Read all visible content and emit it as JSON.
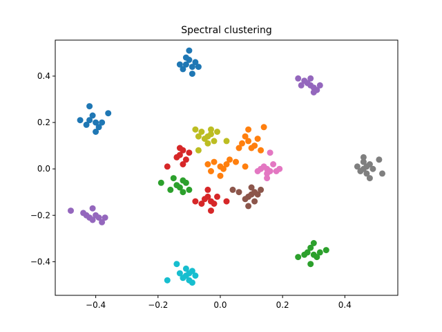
{
  "chart_data": {
    "type": "scatter",
    "title": "Spectral clustering",
    "xlabel": "",
    "ylabel": "",
    "xlim": [
      -0.53,
      0.57
    ],
    "ylim": [
      -0.545,
      0.555
    ],
    "xticks": [
      -0.4,
      -0.2,
      0.0,
      0.2,
      0.4
    ],
    "xtick_labels": [
      "−0.4",
      "−0.2",
      "0.0",
      "0.2",
      "0.4"
    ],
    "yticks": [
      -0.4,
      -0.2,
      0.0,
      0.2,
      0.4
    ],
    "ytick_labels": [
      "−0.4",
      "−0.2",
      "0.0",
      "0.2",
      "0.4"
    ],
    "grid": false,
    "legend": "none",
    "clusters": [
      {
        "color": "#1f77b4",
        "points": [
          [
            -0.11,
            0.45
          ],
          [
            -0.1,
            0.47
          ],
          [
            -0.09,
            0.44
          ],
          [
            -0.12,
            0.43
          ],
          [
            -0.08,
            0.46
          ],
          [
            -0.1,
            0.51
          ],
          [
            -0.09,
            0.41
          ],
          [
            -0.13,
            0.45
          ],
          [
            -0.07,
            0.44
          ],
          [
            -0.11,
            0.48
          ],
          [
            -0.42,
            0.21
          ],
          [
            -0.4,
            0.2
          ],
          [
            -0.41,
            0.23
          ],
          [
            -0.43,
            0.19
          ],
          [
            -0.39,
            0.18
          ],
          [
            -0.42,
            0.27
          ],
          [
            -0.36,
            0.24
          ],
          [
            -0.4,
            0.16
          ],
          [
            -0.45,
            0.21
          ],
          [
            -0.38,
            0.2
          ]
        ]
      },
      {
        "color": "#ff7f0e",
        "points": [
          [
            0.0,
            0.01
          ],
          [
            -0.02,
            0.03
          ],
          [
            0.01,
            0.0
          ],
          [
            -0.03,
            -0.01
          ],
          [
            0.02,
            0.02
          ],
          [
            0.0,
            -0.03
          ],
          [
            0.03,
            0.04
          ],
          [
            -0.04,
            0.02
          ],
          [
            0.05,
            0.03
          ],
          [
            0.09,
            0.12
          ],
          [
            0.11,
            0.1
          ],
          [
            0.08,
            0.14
          ],
          [
            0.1,
            0.09
          ],
          [
            0.12,
            0.13
          ],
          [
            0.07,
            0.11
          ],
          [
            0.14,
            0.18
          ],
          [
            0.06,
            0.09
          ],
          [
            0.13,
            0.08
          ],
          [
            0.09,
            0.17
          ],
          [
            0.08,
            0.01
          ]
        ]
      },
      {
        "color": "#2ca02c",
        "points": [
          [
            -0.14,
            -0.07
          ],
          [
            -0.12,
            -0.05
          ],
          [
            -0.13,
            -0.08
          ],
          [
            -0.11,
            -0.06
          ],
          [
            -0.15,
            -0.04
          ],
          [
            -0.12,
            -0.1
          ],
          [
            -0.19,
            -0.06
          ],
          [
            -0.1,
            -0.09
          ],
          [
            -0.16,
            -0.09
          ],
          [
            0.28,
            -0.36
          ],
          [
            0.3,
            -0.37
          ],
          [
            0.29,
            -0.34
          ],
          [
            0.31,
            -0.38
          ],
          [
            0.27,
            -0.37
          ],
          [
            0.3,
            -0.32
          ],
          [
            0.29,
            -0.41
          ],
          [
            0.34,
            -0.35
          ],
          [
            0.25,
            -0.38
          ],
          [
            0.32,
            -0.36
          ]
        ]
      },
      {
        "color": "#d62728",
        "points": [
          [
            -0.13,
            0.06
          ],
          [
            -0.12,
            0.08
          ],
          [
            -0.14,
            0.05
          ],
          [
            -0.11,
            0.04
          ],
          [
            -0.13,
            0.09
          ],
          [
            -0.12,
            0.02
          ],
          [
            -0.1,
            0.07
          ],
          [
            -0.17,
            0.01
          ],
          [
            -0.03,
            -0.14
          ],
          [
            -0.05,
            -0.13
          ],
          [
            -0.02,
            -0.15
          ],
          [
            -0.04,
            -0.12
          ],
          [
            -0.06,
            -0.15
          ],
          [
            -0.03,
            -0.18
          ],
          [
            -0.01,
            -0.12
          ],
          [
            -0.04,
            -0.09
          ],
          [
            0.02,
            -0.14
          ],
          [
            -0.08,
            -0.14
          ]
        ]
      },
      {
        "color": "#9467bd",
        "points": [
          [
            0.29,
            0.36
          ],
          [
            0.28,
            0.37
          ],
          [
            0.3,
            0.35
          ],
          [
            0.27,
            0.38
          ],
          [
            0.31,
            0.34
          ],
          [
            0.29,
            0.39
          ],
          [
            0.3,
            0.33
          ],
          [
            0.26,
            0.36
          ],
          [
            0.32,
            0.36
          ],
          [
            0.25,
            0.39
          ],
          [
            -0.42,
            -0.21
          ],
          [
            -0.4,
            -0.2
          ],
          [
            -0.41,
            -0.22
          ],
          [
            -0.43,
            -0.2
          ],
          [
            -0.39,
            -0.21
          ],
          [
            -0.41,
            -0.17
          ],
          [
            -0.38,
            -0.23
          ],
          [
            -0.44,
            -0.19
          ],
          [
            -0.48,
            -0.18
          ],
          [
            -0.37,
            -0.21
          ]
        ]
      },
      {
        "color": "#8c564b",
        "points": [
          [
            0.1,
            -0.11
          ],
          [
            0.09,
            -0.12
          ],
          [
            0.11,
            -0.1
          ],
          [
            0.08,
            -0.13
          ],
          [
            0.12,
            -0.11
          ],
          [
            0.1,
            -0.08
          ],
          [
            0.11,
            -0.14
          ],
          [
            0.06,
            -0.1
          ],
          [
            0.13,
            -0.09
          ],
          [
            0.04,
            -0.09
          ],
          [
            0.09,
            -0.16
          ]
        ]
      },
      {
        "color": "#e377c2",
        "points": [
          [
            0.15,
            0.0
          ],
          [
            0.14,
            0.01
          ],
          [
            0.16,
            -0.01
          ],
          [
            0.13,
            0.0
          ],
          [
            0.17,
            0.02
          ],
          [
            0.15,
            -0.02
          ],
          [
            0.12,
            -0.01
          ],
          [
            0.18,
            -0.01
          ],
          [
            0.16,
            0.07
          ],
          [
            0.15,
            -0.04
          ],
          [
            0.19,
            0.0
          ]
        ]
      },
      {
        "color": "#7f7f7f",
        "points": [
          [
            0.46,
            0.0
          ],
          [
            0.47,
            0.01
          ],
          [
            0.45,
            -0.01
          ],
          [
            0.48,
            0.02
          ],
          [
            0.46,
            0.03
          ],
          [
            0.47,
            -0.02
          ],
          [
            0.44,
            0.01
          ],
          [
            0.49,
            0.0
          ],
          [
            0.51,
            0.04
          ],
          [
            0.52,
            -0.02
          ],
          [
            0.46,
            0.05
          ],
          [
            0.48,
            -0.04
          ]
        ]
      },
      {
        "color": "#bcbd22",
        "points": [
          [
            -0.04,
            0.14
          ],
          [
            -0.03,
            0.15
          ],
          [
            -0.05,
            0.13
          ],
          [
            -0.02,
            0.12
          ],
          [
            -0.06,
            0.16
          ],
          [
            -0.04,
            0.11
          ],
          [
            -0.03,
            0.17
          ],
          [
            -0.07,
            0.14
          ],
          [
            -0.01,
            0.16
          ],
          [
            -0.08,
            0.17
          ],
          [
            -0.07,
            0.08
          ],
          [
            0.02,
            0.12
          ]
        ]
      },
      {
        "color": "#17becf",
        "points": [
          [
            -0.11,
            -0.46
          ],
          [
            -0.1,
            -0.45
          ],
          [
            -0.12,
            -0.47
          ],
          [
            -0.09,
            -0.44
          ],
          [
            -0.1,
            -0.48
          ],
          [
            -0.13,
            -0.45
          ],
          [
            -0.08,
            -0.46
          ],
          [
            -0.11,
            -0.43
          ],
          [
            -0.14,
            -0.41
          ],
          [
            -0.17,
            -0.48
          ],
          [
            -0.09,
            -0.49
          ]
        ]
      }
    ]
  }
}
